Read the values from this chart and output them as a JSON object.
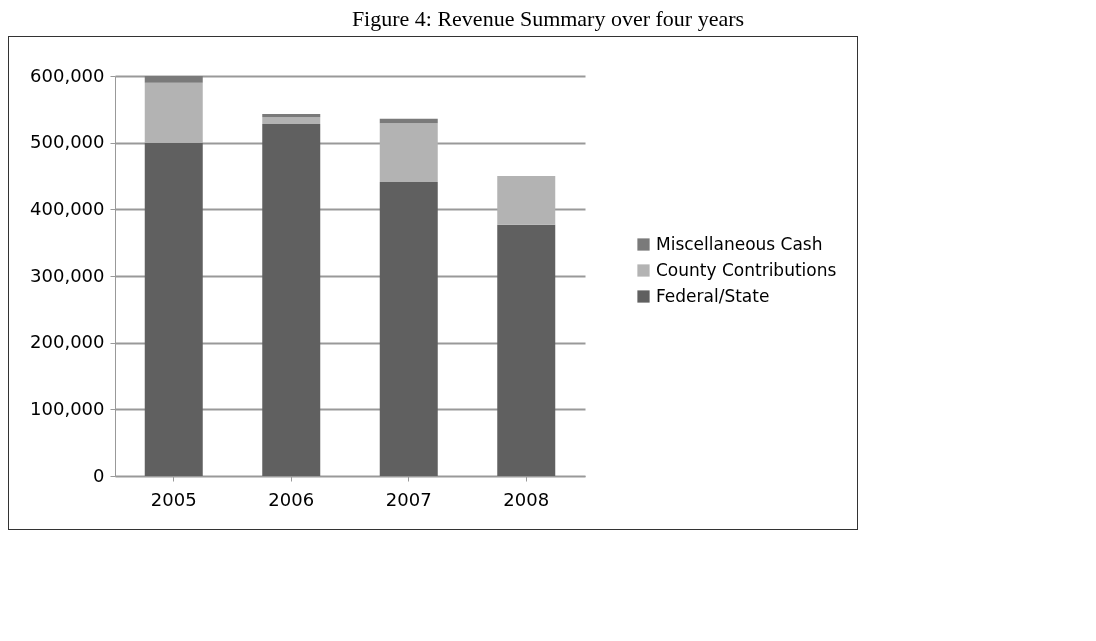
{
  "chart_data": {
    "type": "bar",
    "title": "Figure 4: Revenue Summary over four years",
    "categories": [
      "2005",
      "2006",
      "2007",
      "2008"
    ],
    "stacked": true,
    "series": [
      {
        "name": "Federal/State",
        "color": "#606060",
        "values": [
          500000,
          528000,
          441000,
          377000
        ]
      },
      {
        "name": "County Contributions",
        "color": "#b3b3b3",
        "values": [
          90000,
          10000,
          88000,
          73000
        ]
      },
      {
        "name": "Miscellaneous Cash",
        "color": "#7a7a7a",
        "values": [
          10000,
          5000,
          7000,
          0
        ]
      }
    ],
    "ylim": [
      0,
      600000
    ],
    "yticks": [
      0,
      {
        "value": 100000,
        "label": "100,000"
      },
      {
        "value": 200000,
        "label": "200,000"
      },
      {
        "value": 300000,
        "label": "300,000"
      },
      {
        "value": 400000,
        "label": "400,000"
      },
      {
        "value": 500000,
        "label": "500,000"
      },
      {
        "value": 600000,
        "label": "600,000"
      }
    ],
    "grid": "y",
    "legend": "right"
  }
}
